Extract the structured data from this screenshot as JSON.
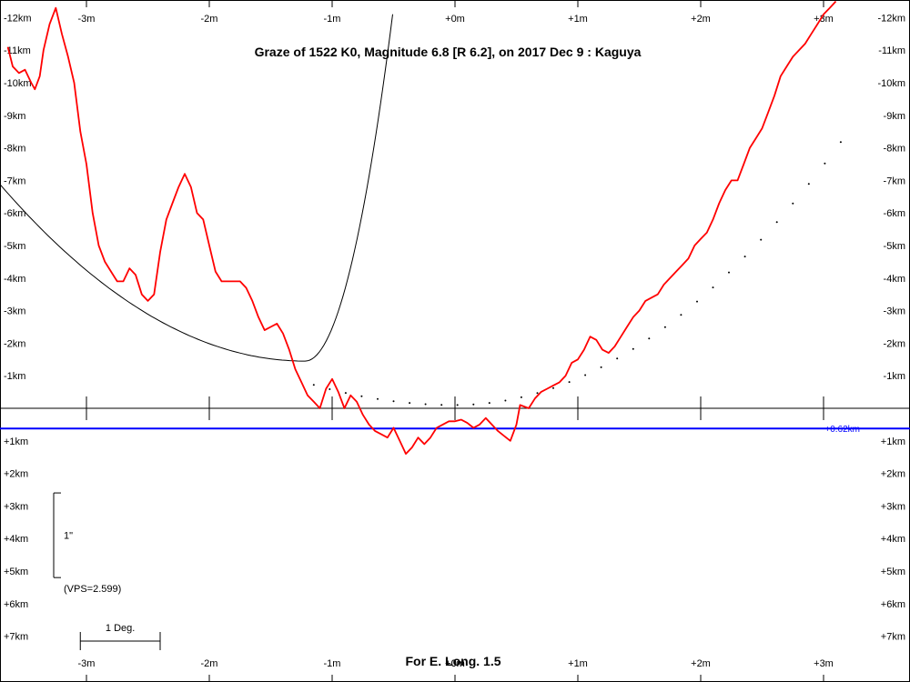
{
  "chart_data": {
    "type": "line",
    "title": "Graze of  1522 K0,  Magnitude 6.8 [R 6.2],  on 2017 Dec  9  :  Kaguya",
    "footer": "For E. Long. 1.5",
    "x_unit": "m",
    "y_unit": "km",
    "x_ticks": [
      "-3m",
      "-2m",
      "-1m",
      "+0m",
      "+1m",
      "+2m",
      "+3m"
    ],
    "x_tick_values": [
      -3,
      -2,
      -1,
      0,
      1,
      2,
      3
    ],
    "y_ticks_neg": [
      "-12km",
      "-11km",
      "-10km",
      "-9km",
      "-8km",
      "-7km",
      "-6km",
      "-5km",
      "-4km",
      "-3km",
      "-2km",
      "-1km"
    ],
    "y_ticks_pos": [
      "+1km",
      "+2km",
      "+3km",
      "+4km",
      "+5km",
      "+6km",
      "+7km"
    ],
    "xlim": [
      -3.7,
      3.7
    ],
    "ylim": [
      -12.5,
      8.2
    ],
    "reference_line": {
      "y": 0.62,
      "label": "+0.62km",
      "color": "#0000ff"
    },
    "scale_bar": {
      "label": "1\"",
      "vps": "(VPS=2.599)",
      "y_range": [
        2.6,
        5.2
      ]
    },
    "deg_bar": {
      "label": "1 Deg.",
      "x_range": [
        -3.05,
        -2.4
      ]
    },
    "series": [
      {
        "color": "#ff0000",
        "values": [
          [
            -3.64,
            -11.1
          ],
          [
            -3.6,
            -10.5
          ],
          [
            -3.55,
            -10.3
          ],
          [
            -3.5,
            -10.4
          ],
          [
            -3.45,
            -10.0
          ],
          [
            -3.42,
            -9.8
          ],
          [
            -3.38,
            -10.2
          ],
          [
            -3.35,
            -11.0
          ],
          [
            -3.3,
            -11.8
          ],
          [
            -3.25,
            -12.3
          ],
          [
            -3.2,
            -11.5
          ],
          [
            -3.15,
            -10.8
          ],
          [
            -3.1,
            -10.0
          ],
          [
            -3.05,
            -8.5
          ],
          [
            -3.0,
            -7.5
          ],
          [
            -2.95,
            -6.0
          ],
          [
            -2.9,
            -5.0
          ],
          [
            -2.85,
            -4.5
          ],
          [
            -2.8,
            -4.2
          ],
          [
            -2.75,
            -3.9
          ],
          [
            -2.7,
            -3.9
          ],
          [
            -2.65,
            -4.3
          ],
          [
            -2.6,
            -4.1
          ],
          [
            -2.55,
            -3.5
          ],
          [
            -2.5,
            -3.3
          ],
          [
            -2.45,
            -3.5
          ],
          [
            -2.4,
            -4.8
          ],
          [
            -2.35,
            -5.8
          ],
          [
            -2.3,
            -6.3
          ],
          [
            -2.25,
            -6.8
          ],
          [
            -2.2,
            -7.2
          ],
          [
            -2.15,
            -6.8
          ],
          [
            -2.1,
            -6.0
          ],
          [
            -2.05,
            -5.8
          ],
          [
            -2.0,
            -5.0
          ],
          [
            -1.95,
            -4.2
          ],
          [
            -1.9,
            -3.9
          ],
          [
            -1.85,
            -3.9
          ],
          [
            -1.8,
            -3.9
          ],
          [
            -1.75,
            -3.9
          ],
          [
            -1.7,
            -3.7
          ],
          [
            -1.65,
            -3.3
          ],
          [
            -1.6,
            -2.8
          ],
          [
            -1.55,
            -2.4
          ],
          [
            -1.5,
            -2.5
          ],
          [
            -1.45,
            -2.6
          ],
          [
            -1.4,
            -2.3
          ],
          [
            -1.35,
            -1.8
          ],
          [
            -1.3,
            -1.2
          ],
          [
            -1.25,
            -0.8
          ],
          [
            -1.2,
            -0.4
          ],
          [
            -1.15,
            -0.2
          ],
          [
            -1.1,
            0.0
          ],
          [
            -1.05,
            -0.6
          ],
          [
            -1.0,
            -0.9
          ],
          [
            -0.95,
            -0.5
          ],
          [
            -0.9,
            0.0
          ],
          [
            -0.85,
            -0.4
          ],
          [
            -0.8,
            -0.2
          ],
          [
            -0.75,
            0.2
          ],
          [
            -0.7,
            0.5
          ],
          [
            -0.65,
            0.7
          ],
          [
            -0.6,
            0.8
          ],
          [
            -0.55,
            0.9
          ],
          [
            -0.5,
            0.6
          ],
          [
            -0.45,
            1.0
          ],
          [
            -0.4,
            1.4
          ],
          [
            -0.35,
            1.2
          ],
          [
            -0.3,
            0.9
          ],
          [
            -0.25,
            1.1
          ],
          [
            -0.2,
            0.9
          ],
          [
            -0.15,
            0.6
          ],
          [
            -0.1,
            0.5
          ],
          [
            -0.05,
            0.4
          ],
          [
            0.0,
            0.4
          ],
          [
            0.05,
            0.35
          ],
          [
            0.1,
            0.45
          ],
          [
            0.15,
            0.6
          ],
          [
            0.2,
            0.5
          ],
          [
            0.25,
            0.3
          ],
          [
            0.3,
            0.5
          ],
          [
            0.35,
            0.7
          ],
          [
            0.4,
            0.85
          ],
          [
            0.45,
            1.0
          ],
          [
            0.5,
            0.5
          ],
          [
            0.53,
            -0.1
          ],
          [
            0.6,
            0.0
          ],
          [
            0.65,
            -0.3
          ],
          [
            0.7,
            -0.5
          ],
          [
            0.75,
            -0.6
          ],
          [
            0.8,
            -0.7
          ],
          [
            0.85,
            -0.8
          ],
          [
            0.9,
            -1.0
          ],
          [
            0.95,
            -1.4
          ],
          [
            1.0,
            -1.5
          ],
          [
            1.05,
            -1.8
          ],
          [
            1.1,
            -2.2
          ],
          [
            1.15,
            -2.1
          ],
          [
            1.2,
            -1.8
          ],
          [
            1.25,
            -1.7
          ],
          [
            1.3,
            -1.9
          ],
          [
            1.35,
            -2.2
          ],
          [
            1.4,
            -2.5
          ],
          [
            1.45,
            -2.8
          ],
          [
            1.5,
            -3.0
          ],
          [
            1.55,
            -3.3
          ],
          [
            1.6,
            -3.4
          ],
          [
            1.65,
            -3.5
          ],
          [
            1.7,
            -3.8
          ],
          [
            1.75,
            -4.0
          ],
          [
            1.8,
            -4.2
          ],
          [
            1.85,
            -4.4
          ],
          [
            1.9,
            -4.6
          ],
          [
            1.95,
            -5.0
          ],
          [
            2.0,
            -5.2
          ],
          [
            2.05,
            -5.4
          ],
          [
            2.1,
            -5.8
          ],
          [
            2.15,
            -6.3
          ],
          [
            2.2,
            -6.7
          ],
          [
            2.25,
            -7.0
          ],
          [
            2.3,
            -7.0
          ],
          [
            2.35,
            -7.5
          ],
          [
            2.4,
            -8.0
          ],
          [
            2.45,
            -8.3
          ],
          [
            2.5,
            -8.6
          ],
          [
            2.55,
            -9.1
          ],
          [
            2.6,
            -9.6
          ],
          [
            2.65,
            -10.2
          ],
          [
            2.7,
            -10.5
          ],
          [
            2.75,
            -10.8
          ],
          [
            2.8,
            -11.0
          ],
          [
            2.85,
            -11.2
          ],
          [
            2.9,
            -11.5
          ],
          [
            2.95,
            -11.8
          ],
          [
            3.0,
            -12.1
          ],
          [
            3.05,
            -12.3
          ],
          [
            3.1,
            -12.5
          ]
        ]
      }
    ],
    "curve_color": "#000000",
    "dot_color": "#000000"
  }
}
